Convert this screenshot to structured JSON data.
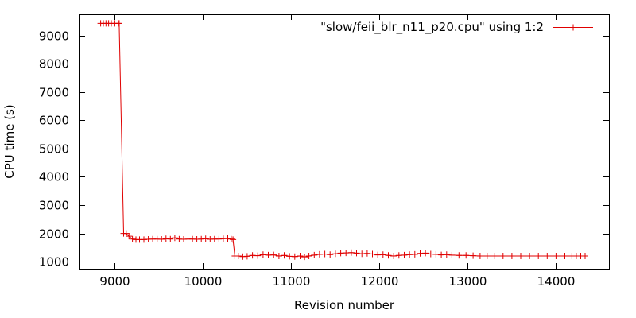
{
  "chart_data": {
    "type": "line",
    "title": "",
    "xlabel": "Revision number",
    "ylabel": "CPU time (s)",
    "xlim": [
      8600,
      14600
    ],
    "ylim": [
      750,
      9750
    ],
    "xticks": [
      9000,
      10000,
      11000,
      12000,
      13000,
      14000
    ],
    "yticks": [
      1000,
      2000,
      3000,
      4000,
      5000,
      6000,
      7000,
      8000,
      9000
    ],
    "grid": false,
    "legend_position": "top-right",
    "colors": {
      "series": "#e00000",
      "axis": "#000000"
    },
    "marker": "plus",
    "series": [
      {
        "name": "\"slow/feii_blr_n11_p20.cpu\" using 1:2",
        "x": [
          8840,
          8870,
          8900,
          8930,
          8960,
          9000,
          9040,
          9050,
          9100,
          9130,
          9160,
          9200,
          9240,
          9280,
          9330,
          9380,
          9430,
          9480,
          9530,
          9580,
          9630,
          9680,
          9730,
          9780,
          9830,
          9880,
          9930,
          9980,
          10030,
          10080,
          10130,
          10180,
          10230,
          10280,
          10320,
          10340,
          10360,
          10400,
          10450,
          10500,
          10560,
          10620,
          10680,
          10740,
          10800,
          10860,
          10920,
          10980,
          11040,
          11100,
          11150,
          11200,
          11260,
          11320,
          11380,
          11440,
          11500,
          11560,
          11620,
          11680,
          11740,
          11800,
          11860,
          11920,
          11980,
          12040,
          12100,
          12160,
          12220,
          12280,
          12340,
          12400,
          12460,
          12520,
          12580,
          12640,
          12700,
          12760,
          12820,
          12900,
          12980,
          13060,
          13140,
          13220,
          13300,
          13400,
          13500,
          13600,
          13700,
          13800,
          13900,
          14000,
          14100,
          14180,
          14230,
          14280,
          14330
        ],
        "y": [
          9430,
          9430,
          9430,
          9430,
          9430,
          9430,
          9430,
          9430,
          2000,
          2000,
          1900,
          1800,
          1780,
          1780,
          1780,
          1790,
          1800,
          1800,
          1790,
          1810,
          1800,
          1840,
          1800,
          1790,
          1800,
          1800,
          1790,
          1800,
          1810,
          1790,
          1800,
          1800,
          1810,
          1820,
          1800,
          1780,
          1200,
          1200,
          1180,
          1190,
          1220,
          1210,
          1250,
          1230,
          1240,
          1200,
          1220,
          1190,
          1180,
          1200,
          1170,
          1200,
          1230,
          1260,
          1270,
          1250,
          1280,
          1300,
          1310,
          1320,
          1300,
          1280,
          1290,
          1270,
          1240,
          1250,
          1220,
          1200,
          1220,
          1230,
          1250,
          1260,
          1290,
          1300,
          1270,
          1260,
          1240,
          1250,
          1230,
          1220,
          1220,
          1210,
          1200,
          1200,
          1200,
          1200,
          1200,
          1200,
          1200,
          1200,
          1200,
          1200,
          1200,
          1200,
          1200,
          1200,
          1200
        ]
      }
    ]
  }
}
